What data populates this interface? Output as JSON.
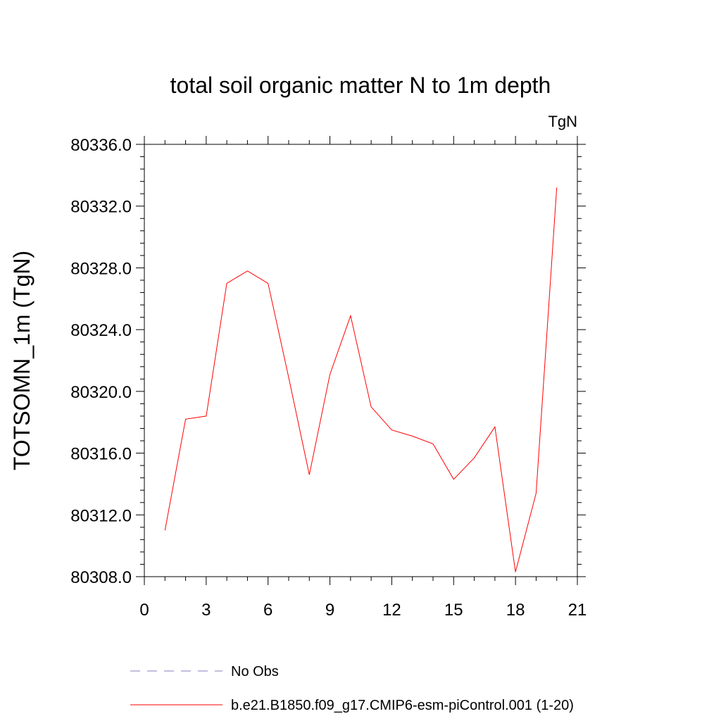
{
  "chart_data": {
    "type": "line",
    "title": "total soil organic matter N to 1m depth",
    "units": "TgN",
    "ylabel": "TOTSOMN_1m  (TgN)",
    "xlabel": "",
    "xlim": [
      0,
      21
    ],
    "ylim": [
      80308.0,
      80336.0
    ],
    "xticks": [
      0,
      3,
      6,
      9,
      12,
      15,
      18,
      21
    ],
    "yticks": [
      80308.0,
      80312.0,
      80316.0,
      80320.0,
      80324.0,
      80328.0,
      80332.0,
      80336.0
    ],
    "ytick_labels": [
      "80308.0",
      "80312.0",
      "80316.0",
      "80320.0",
      "80324.0",
      "80328.0",
      "80332.0",
      "80336.0"
    ],
    "grid": false,
    "legend_position": "bottom",
    "series": [
      {
        "name": "No Obs",
        "color": "#8080c0",
        "dash": "dashed",
        "x": [],
        "y": []
      },
      {
        "name": "b.e21.B1850.f09_g17.CMIP6-esm-piControl.001 (1-20)",
        "color": "#ff0000",
        "dash": "solid",
        "x": [
          1,
          2,
          3,
          4,
          5,
          6,
          7,
          8,
          9,
          10,
          11,
          12,
          13,
          14,
          15,
          16,
          17,
          18,
          19,
          20
        ],
        "y": [
          80311.0,
          80318.2,
          80318.4,
          80327.0,
          80327.8,
          80327.0,
          80320.9,
          80314.6,
          80321.1,
          80324.9,
          80319.0,
          80317.5,
          80317.1,
          80316.6,
          80314.3,
          80315.7,
          80317.7,
          80308.3,
          80313.4,
          80333.2
        ]
      }
    ]
  }
}
